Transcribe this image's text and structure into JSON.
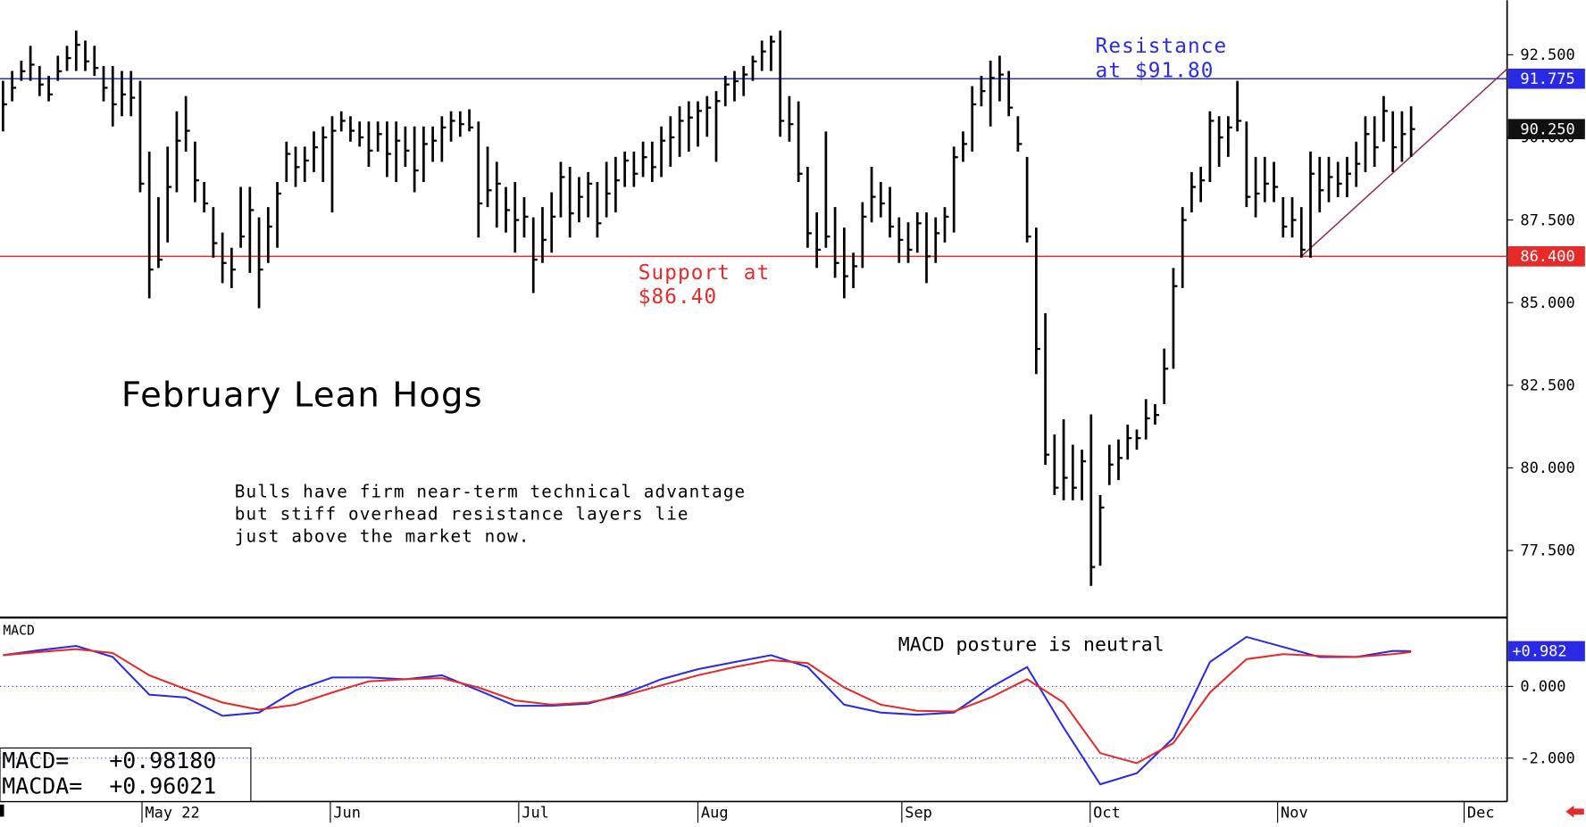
{
  "chart_data": [
    {
      "type": "ohlc",
      "title": "February Lean Hogs",
      "high": [
        91.71,
        92.01,
        92.32,
        92.77,
        92.16,
        91.86,
        92.47,
        92.77,
        93.23,
        92.93,
        92.77,
        92.16,
        92.16,
        92.01,
        92.01,
        91.71,
        89.57,
        88.19,
        89.72,
        90.79,
        91.25,
        89.87,
        88.65,
        87.89,
        87.12,
        86.66,
        88.5,
        88.5,
        87.58,
        87.89,
        88.65,
        89.87,
        89.72,
        89.72,
        90.18,
        90.33,
        90.64,
        90.79,
        90.64,
        90.48,
        90.48,
        90.48,
        90.48,
        90.48,
        90.33,
        90.33,
        90.33,
        90.33,
        90.64,
        90.79,
        90.79,
        90.85,
        90.48,
        89.72,
        89.26,
        88.5,
        88.65,
        88.19,
        87.58,
        87.89,
        88.34,
        89.26,
        89.11,
        88.8,
        88.95,
        88.65,
        89.26,
        89.41,
        89.57,
        89.57,
        89.87,
        89.87,
        90.33,
        90.64,
        90.94,
        91.09,
        91.09,
        91.25,
        91.4,
        91.86,
        92.01,
        92.16,
        92.47,
        92.93,
        93.08,
        93.23,
        91.25,
        91.09,
        89.11,
        87.73,
        90.18,
        87.89,
        87.27,
        86.51,
        88.04,
        89.11,
        88.65,
        88.5,
        87.58,
        87.43,
        87.73,
        87.73,
        87.58,
        87.89,
        89.72,
        90.18,
        91.55,
        91.86,
        92.32,
        92.47,
        92.01,
        90.64,
        89.41,
        87.27,
        84.68,
        81.01,
        81.47,
        80.7,
        80.55,
        81.62,
        79.18,
        80.7,
        80.86,
        81.31,
        81.16,
        82.08,
        81.93,
        83.61,
        86.05,
        87.89,
        88.95,
        89.11,
        90.79,
        90.64,
        90.64,
        91.71,
        90.48,
        89.41,
        89.41,
        89.26,
        88.19,
        88.19,
        87.89,
        89.57,
        89.41,
        89.41,
        89.26,
        89.41,
        89.87,
        90.64,
        90.64,
        91.25,
        90.79,
        90.79,
        90.94
      ],
      "low": [
        90.18,
        91.09,
        91.71,
        91.71,
        91.25,
        91.09,
        91.71,
        92.01,
        92.01,
        92.01,
        91.86,
        91.09,
        90.33,
        90.64,
        90.64,
        88.34,
        85.13,
        86.05,
        86.82,
        88.34,
        89.57,
        88.04,
        87.73,
        86.36,
        85.59,
        85.44,
        86.66,
        85.9,
        84.83,
        86.2,
        86.66,
        88.65,
        88.5,
        88.65,
        88.95,
        88.65,
        87.73,
        90.18,
        89.87,
        89.72,
        89.11,
        89.57,
        88.8,
        88.65,
        89.11,
        88.34,
        88.65,
        89.26,
        89.26,
        89.87,
        90.02,
        90.18,
        86.97,
        87.89,
        87.27,
        87.12,
        86.51,
        86.97,
        85.29,
        86.2,
        86.51,
        87.58,
        86.97,
        87.43,
        87.58,
        86.97,
        87.58,
        87.73,
        88.5,
        88.5,
        88.8,
        88.65,
        88.8,
        89.11,
        89.41,
        89.57,
        89.72,
        90.02,
        89.26,
        90.94,
        91.09,
        91.25,
        91.71,
        92.01,
        92.01,
        90.02,
        89.87,
        88.65,
        86.66,
        86.05,
        86.66,
        85.75,
        85.13,
        85.44,
        86.05,
        87.43,
        87.58,
        86.97,
        86.2,
        86.2,
        86.51,
        85.59,
        86.2,
        86.82,
        87.12,
        89.26,
        89.57,
        90.94,
        90.33,
        91.09,
        90.64,
        89.57,
        86.82,
        82.84,
        80.09,
        79.18,
        79.02,
        79.02,
        79.02,
        76.43,
        77.04,
        79.48,
        79.63,
        80.25,
        80.55,
        80.86,
        81.31,
        81.93,
        83.0,
        85.44,
        87.73,
        88.04,
        88.65,
        89.11,
        89.41,
        90.18,
        87.89,
        87.58,
        88.04,
        88.04,
        86.97,
        86.97,
        86.36,
        86.36,
        87.73,
        88.04,
        88.19,
        88.19,
        88.5,
        88.95,
        89.11,
        89.87,
        88.95,
        89.26,
        89.41
      ],
      "close": [
        91.0,
        91.5,
        92.0,
        92.2,
        91.6,
        91.3,
        92.0,
        92.4,
        92.8,
        92.3,
        92.1,
        91.5,
        91.0,
        91.3,
        91.2,
        88.6,
        86.0,
        86.3,
        88.5,
        89.9,
        90.2,
        88.7,
        88.0,
        86.8,
        86.2,
        86.0,
        87.0,
        87.8,
        86.0,
        87.3,
        88.3,
        89.5,
        89.1,
        89.3,
        89.7,
        90.0,
        90.2,
        90.5,
        90.2,
        90.0,
        89.6,
        90.1,
        89.5,
        89.9,
        89.6,
        89.0,
        89.8,
        89.9,
        90.3,
        90.5,
        90.4,
        90.3,
        88.0,
        88.4,
        88.6,
        87.8,
        87.5,
        87.6,
        86.3,
        86.9,
        87.6,
        88.8,
        87.7,
        88.2,
        88.6,
        87.4,
        88.3,
        88.7,
        89.3,
        88.9,
        89.4,
        89.1,
        89.9,
        90.0,
        90.5,
        90.6,
        90.8,
        90.9,
        91.1,
        91.6,
        91.7,
        91.9,
        92.3,
        92.6,
        92.9,
        90.5,
        90.4,
        88.9,
        87.1,
        86.6,
        87.0,
        86.2,
        85.8,
        86.1,
        87.6,
        88.2,
        88.0,
        87.3,
        86.9,
        86.6,
        87.4,
        86.4,
        87.1,
        87.6,
        89.4,
        89.8,
        91.0,
        91.4,
        91.8,
        91.9,
        90.9,
        89.8,
        87.0,
        83.6,
        80.4,
        79.4,
        79.7,
        79.4,
        80.2,
        77.0,
        78.8,
        80.1,
        80.3,
        80.9,
        80.9,
        81.5,
        81.6,
        83.0,
        85.5,
        87.5,
        88.5,
        88.7,
        90.5,
        90.0,
        90.3,
        90.5,
        88.2,
        88.3,
        88.6,
        88.5,
        87.3,
        87.5,
        86.6,
        88.9,
        88.4,
        88.8,
        88.6,
        88.9,
        89.2,
        90.1,
        89.7,
        90.8,
        89.7,
        90.1,
        90.25
      ],
      "color": "#000000",
      "xlim": [
        -0.33,
        164.5
      ],
      "xticks": [
        {
          "value": 15.2,
          "label": "May 22"
        },
        {
          "value": 35.8,
          "label": "Jun"
        },
        {
          "value": 56.4,
          "label": "Jul"
        },
        {
          "value": 76.0,
          "label": "Aug"
        },
        {
          "value": 98.3,
          "label": "Sep"
        },
        {
          "value": 118.9,
          "label": "Oct"
        },
        {
          "value": 139.4,
          "label": "Nov"
        },
        {
          "value": 159.8,
          "label": "Dec"
        }
      ],
      "ylim": [
        75.5,
        94.15
      ],
      "yticks": [
        {
          "value": 77.5,
          "label": "77.500"
        },
        {
          "value": 80,
          "label": "80.000"
        },
        {
          "value": 82.5,
          "label": "82.500"
        },
        {
          "value": 85,
          "label": "85.000"
        },
        {
          "value": 87.5,
          "label": "87.500"
        },
        {
          "value": 90,
          "label": "90.000"
        },
        {
          "value": 92.5,
          "label": "92.500"
        }
      ],
      "hlines": [
        {
          "value": 91.775,
          "label": "91.775",
          "color": "#2a2ae6"
        },
        {
          "value": 86.4,
          "label": "86.400",
          "color": "#e62a2a"
        }
      ],
      "last_price": {
        "value": 90.25,
        "label": "90.250"
      },
      "trendline": {
        "x": [
          142,
          164.5
        ],
        "y": [
          86.4,
          92.07
        ],
        "color": "#8b2a4a"
      },
      "annotations": [
        {
          "text": [
            "Resistance",
            "at $91.80"
          ],
          "color": "#2a2ae6"
        },
        {
          "text": [
            "Support at",
            "$86.40"
          ],
          "color": "#e62a2a"
        },
        {
          "text": [
            "Bulls have firm near-term technical advantage",
            "but stiff overhead resistance layers lie",
            "just above the market now."
          ],
          "color": "#000000"
        }
      ]
    },
    {
      "type": "line",
      "title": "MACD",
      "subtitle": "MACD posture is neutral",
      "x": [
        0,
        4,
        8,
        12,
        16,
        20,
        24,
        28,
        32,
        36,
        40,
        44,
        48,
        52,
        56,
        60,
        64,
        68,
        72,
        76,
        80,
        84,
        88,
        92,
        96,
        100,
        104,
        108,
        112,
        116,
        120,
        124,
        128,
        132,
        136,
        140,
        144,
        148,
        152,
        154
      ],
      "xlim": [
        -0.33,
        164.5
      ],
      "series": [
        {
          "name": "MACD=",
          "color": "#2a2ae6",
          "values": [
            0.87,
            1.01,
            1.13,
            0.82,
            -0.23,
            -0.31,
            -0.82,
            -0.73,
            -0.11,
            0.25,
            0.25,
            0.2,
            0.31,
            -0.11,
            -0.54,
            -0.54,
            -0.48,
            -0.2,
            0.2,
            0.48,
            0.68,
            0.87,
            0.54,
            -0.51,
            -0.73,
            -0.79,
            -0.73,
            -0.03,
            0.54,
            -1.15,
            -2.73,
            -2.42,
            -1.44,
            0.68,
            1.38,
            1.1,
            0.82,
            0.82,
            0.99,
            0.9818
          ],
          "last_label": "+0.98180",
          "tag": "+0.982"
        },
        {
          "name": "MACDA=",
          "color": "#e62a2a",
          "values": [
            0.87,
            0.96,
            1.04,
            0.93,
            0.31,
            -0.08,
            -0.45,
            -0.65,
            -0.51,
            -0.17,
            0.14,
            0.2,
            0.23,
            -0.03,
            -0.39,
            -0.51,
            -0.45,
            -0.25,
            0.03,
            0.31,
            0.54,
            0.73,
            0.65,
            -0.03,
            -0.51,
            -0.68,
            -0.7,
            -0.31,
            0.2,
            -0.45,
            -1.86,
            -2.14,
            -1.58,
            -0.17,
            0.76,
            0.9,
            0.85,
            0.82,
            0.9,
            0.96021
          ],
          "last_label": "+0.96021"
        }
      ],
      "ylim": [
        -3.21,
        1.89
      ],
      "yticks": [
        {
          "value": -2,
          "label": "-2.000"
        },
        {
          "value": 0,
          "label": "0.000"
        }
      ],
      "grid": true
    }
  ]
}
